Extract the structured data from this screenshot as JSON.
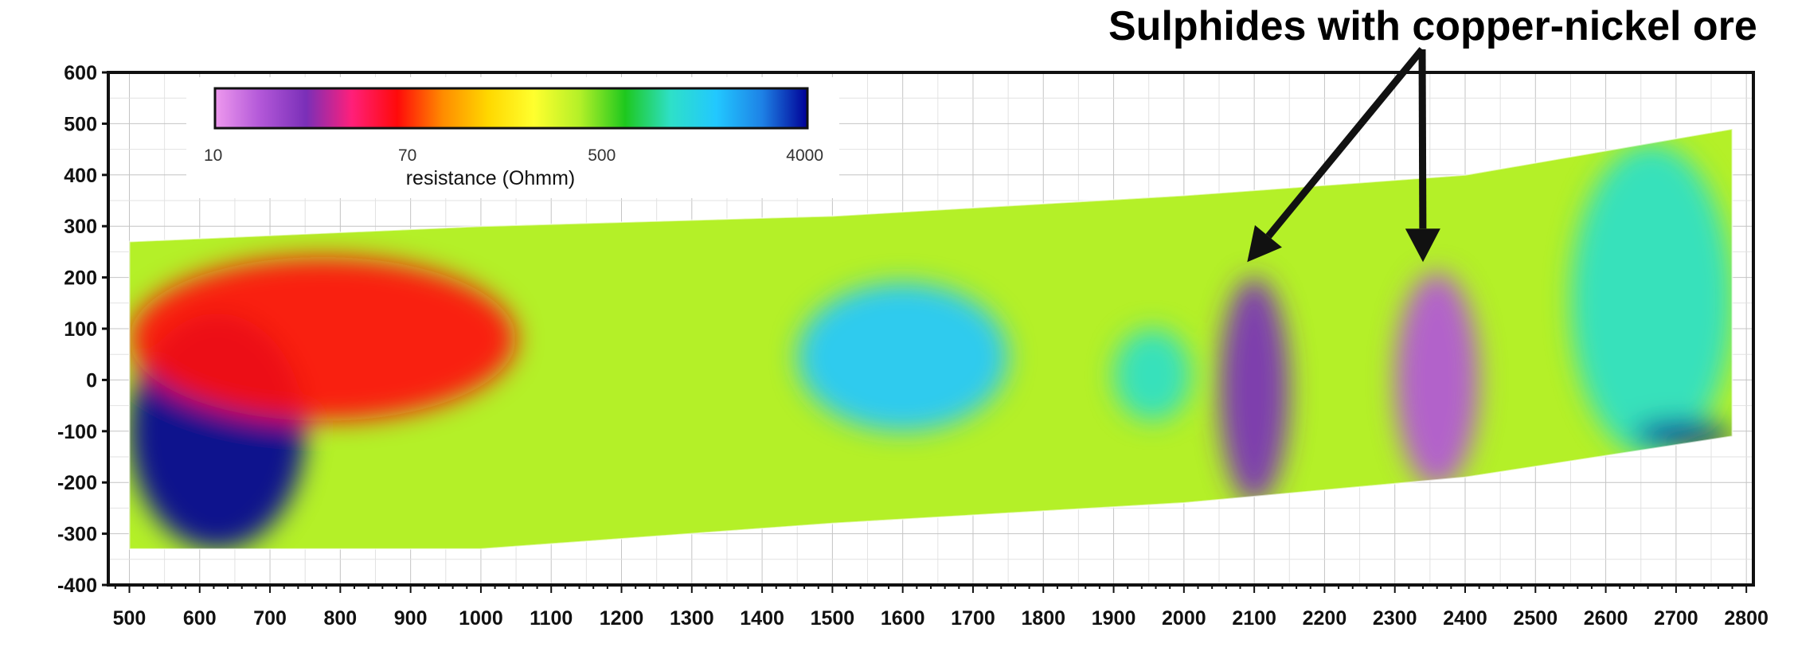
{
  "chart_data": {
    "type": "heatmap",
    "title": "",
    "xlabel": "",
    "ylabel": "",
    "xlim": [
      470,
      2810
    ],
    "ylim": [
      -400,
      600
    ],
    "x_ticks": [
      500,
      600,
      700,
      800,
      900,
      1000,
      1100,
      1200,
      1300,
      1400,
      1500,
      1600,
      1700,
      1800,
      1900,
      2000,
      2100,
      2200,
      2300,
      2400,
      2500,
      2600,
      2700,
      2800
    ],
    "y_ticks": [
      600,
      500,
      400,
      300,
      200,
      100,
      0,
      -100,
      -200,
      -300,
      -400
    ],
    "grid": true,
    "colorbar": {
      "label": "resistance (Ohmm)",
      "scale": "log",
      "ticks": [
        "10",
        "70",
        "500",
        "4000"
      ],
      "range": [
        10,
        4000
      ],
      "colors": [
        "#ee99ee",
        "#b257d8",
        "#7a2fb8",
        "#ff1f7a",
        "#ff0a0a",
        "#ff8c00",
        "#ffd800",
        "#ffff2e",
        "#b4f028",
        "#1ec81e",
        "#2ee0c8",
        "#22c8ff",
        "#1e82e6",
        "#000096"
      ]
    },
    "surface_profile": [
      [
        500,
        270
      ],
      [
        1000,
        300
      ],
      [
        1500,
        320
      ],
      [
        2000,
        360
      ],
      [
        2400,
        400
      ],
      [
        2780,
        490
      ]
    ],
    "base_profile": [
      [
        500,
        -330
      ],
      [
        1000,
        -330
      ],
      [
        1500,
        -280
      ],
      [
        2000,
        -240
      ],
      [
        2400,
        -190
      ],
      [
        2780,
        -110
      ]
    ],
    "anomalies": [
      {
        "x": [
          500,
          750
        ],
        "y": [
          -330,
          130
        ],
        "resistance": 4000
      },
      {
        "x": [
          500,
          1050
        ],
        "y": [
          -80,
          240
        ],
        "resistance": 60
      },
      {
        "x": [
          1450,
          1750
        ],
        "y": [
          -100,
          190
        ],
        "resistance": 1500
      },
      {
        "x": [
          1900,
          2010
        ],
        "y": [
          -80,
          100
        ],
        "resistance": 900
      },
      {
        "x": [
          2050,
          2150
        ],
        "y": [
          -240,
          200
        ],
        "resistance": 25
      },
      {
        "x": [
          2300,
          2420
        ],
        "y": [
          -210,
          210
        ],
        "resistance": 15
      },
      {
        "x": [
          2550,
          2780
        ],
        "y": [
          -150,
          460
        ],
        "resistance": 1200
      },
      {
        "x": [
          2640,
          2780
        ],
        "y": [
          -130,
          -80
        ],
        "resistance": 4000
      }
    ],
    "annotations": [
      {
        "text": "Sulphides with copper-nickel ore",
        "arrow_targets": [
          [
            2090,
            230
          ],
          [
            2340,
            230
          ]
        ]
      }
    ]
  }
}
